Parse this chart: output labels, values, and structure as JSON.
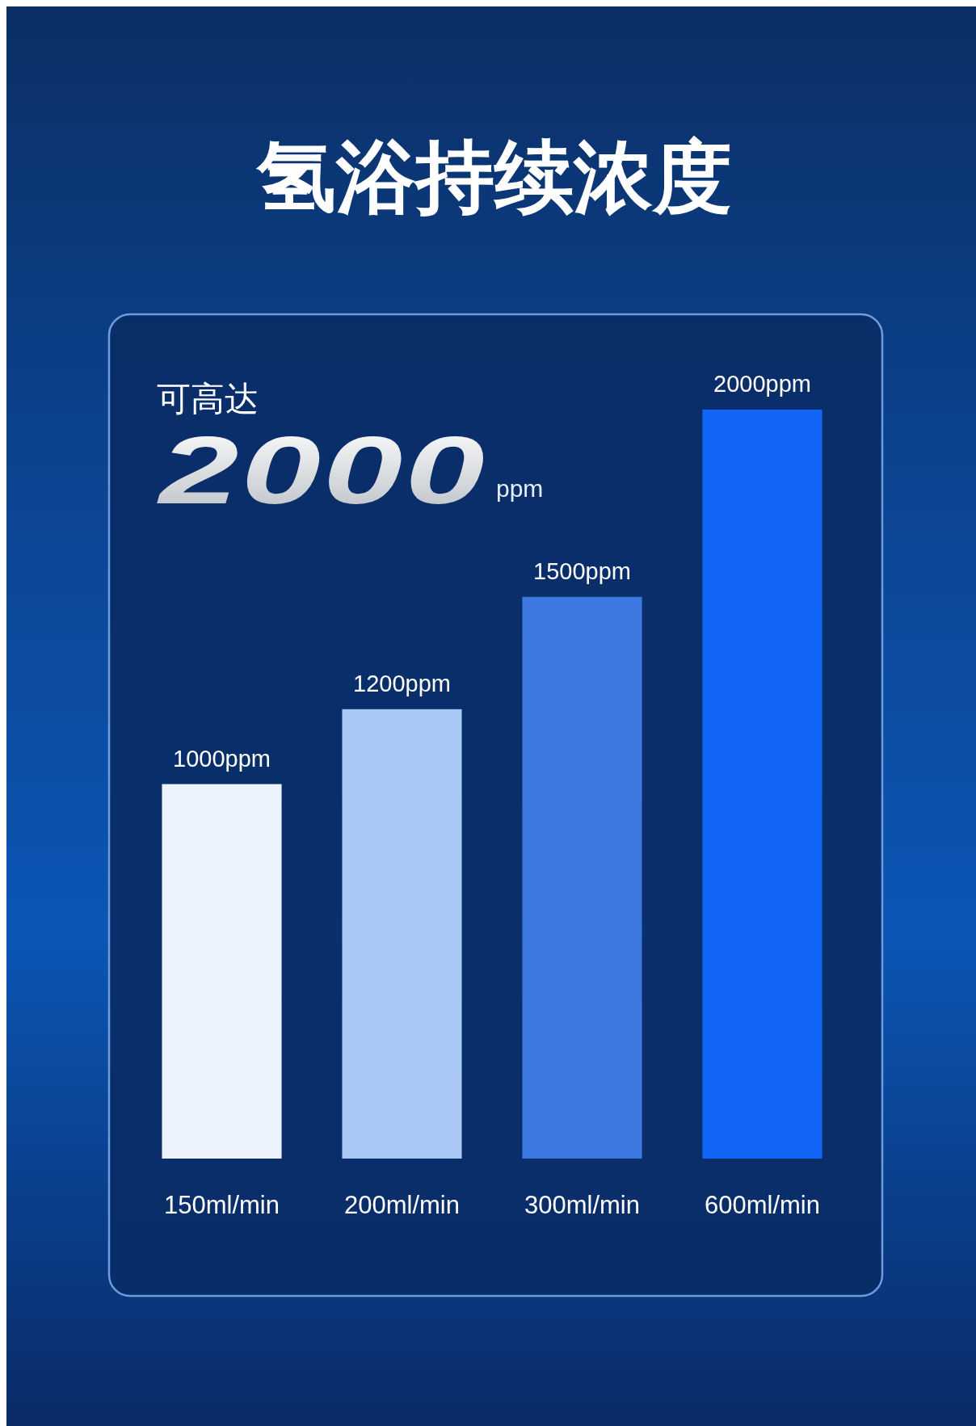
{
  "chart_data": {
    "type": "bar",
    "title": "氢浴持续浓度",
    "categories": [
      "150ml/min",
      "200ml/min",
      "300ml/min",
      "600ml/min"
    ],
    "values": [
      1000,
      1200,
      1500,
      2000
    ],
    "colors": [
      "#edf3fc",
      "#a9c8f5",
      "#3d78e0",
      "#1166f7"
    ],
    "value_labels": [
      "1000ppm",
      "1200ppm",
      "1500ppm",
      "2000ppm"
    ],
    "annotations": [
      "可高达",
      "2000",
      "ppm"
    ],
    "tick_labels": "x"
  }
}
